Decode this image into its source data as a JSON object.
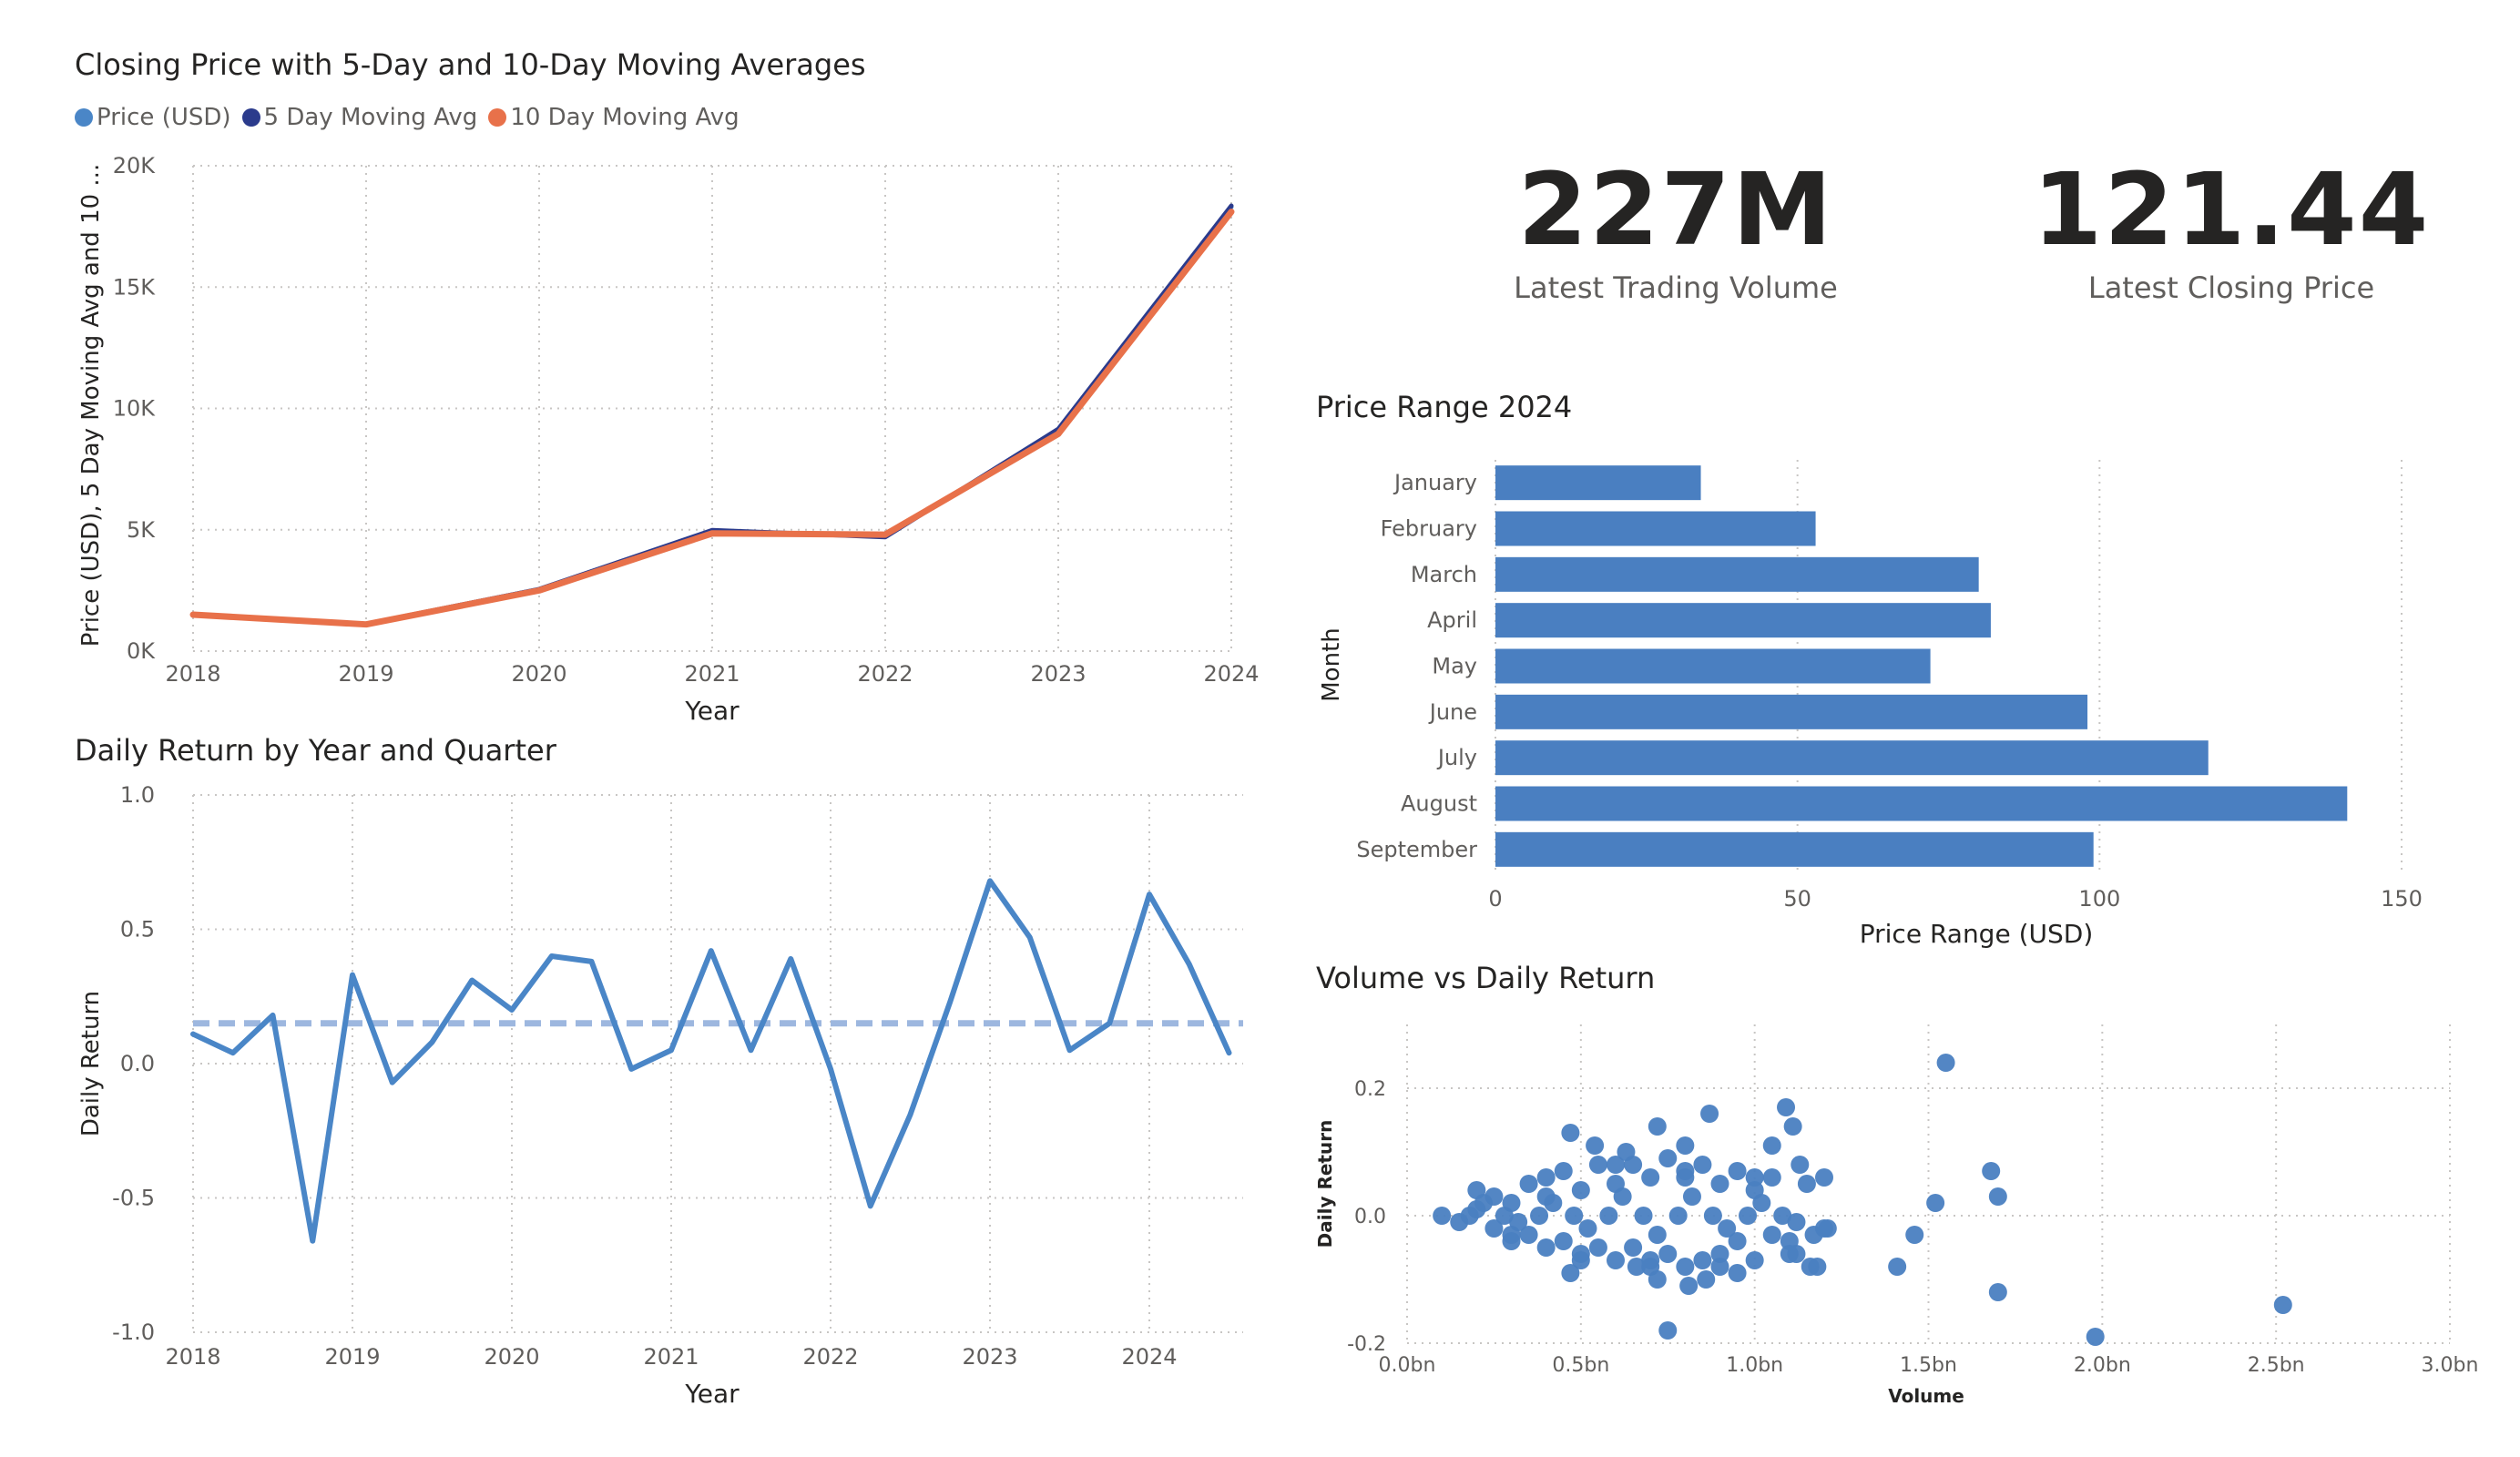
{
  "kpis": {
    "volume": {
      "value": "227M",
      "label": "Latest Trading Volume"
    },
    "price": {
      "value": "121.44",
      "label": "Latest Closing Price"
    }
  },
  "colors": {
    "price": "#4a86c7",
    "ma5": "#2b3b8c",
    "ma10": "#e8714a",
    "bar": "#4a7fc1",
    "scatter": "#4a7fc1",
    "grid": "#c8c6c4",
    "axis_text": "#605e5c"
  },
  "chart_data": [
    {
      "id": "moving_avg",
      "type": "line",
      "title": "Closing Price with 5-Day and 10-Day Moving Averages",
      "xlabel": "Year",
      "ylabel": "Price (USD), 5 Day Moving Avg and 10 ...",
      "x": [
        2018,
        2019,
        2020,
        2021,
        2022,
        2023,
        2024
      ],
      "xticks": [
        "2018",
        "2019",
        "2020",
        "2021",
        "2022",
        "2023",
        "2024"
      ],
      "ylim": [
        0,
        20000
      ],
      "yticks": [
        {
          "v": 0,
          "label": "0K"
        },
        {
          "v": 5000,
          "label": "5K"
        },
        {
          "v": 10000,
          "label": "10K"
        },
        {
          "v": 15000,
          "label": "15K"
        },
        {
          "v": 20000,
          "label": "20K"
        }
      ],
      "legend": "top-left",
      "grid": true,
      "series": [
        {
          "name": "Price (USD)",
          "values": [
            1500,
            1120,
            2550,
            4950,
            4750,
            9100,
            18300
          ]
        },
        {
          "name": "5 Day Moving Avg",
          "values": [
            1500,
            1120,
            2550,
            4980,
            4700,
            9150,
            18350
          ]
        },
        {
          "name": "10 Day Moving Avg",
          "values": [
            1500,
            1100,
            2500,
            4850,
            4800,
            8950,
            18100
          ]
        }
      ]
    },
    {
      "id": "daily_return",
      "type": "line",
      "title": "Daily Return by Year and Quarter",
      "xlabel": "Year",
      "ylabel": "Daily Return",
      "xticks": [
        "2018",
        "2019",
        "2020",
        "2021",
        "2022",
        "2023",
        "2024"
      ],
      "xlim": [
        2018,
        2024.6
      ],
      "ylim": [
        -1.0,
        1.0
      ],
      "yticks": [
        {
          "v": -1.0,
          "label": "-1.0"
        },
        {
          "v": -0.5,
          "label": "-0.5"
        },
        {
          "v": 0.0,
          "label": "0.0"
        },
        {
          "v": 0.5,
          "label": "0.5"
        },
        {
          "v": 1.0,
          "label": "1.0"
        }
      ],
      "grid": true,
      "average_line": 0.15,
      "x": [
        2018.0,
        2018.25,
        2018.5,
        2018.75,
        2019.0,
        2019.25,
        2019.5,
        2019.75,
        2020.0,
        2020.25,
        2020.5,
        2020.75,
        2021.0,
        2021.25,
        2021.5,
        2021.75,
        2022.0,
        2022.25,
        2022.5,
        2022.75,
        2023.0,
        2023.25,
        2023.5,
        2023.75,
        2024.0,
        2024.25,
        2024.5
      ],
      "values": [
        0.11,
        0.04,
        0.18,
        -0.66,
        0.33,
        -0.07,
        0.08,
        0.31,
        0.2,
        0.4,
        0.38,
        -0.02,
        0.05,
        0.42,
        0.05,
        0.39,
        -0.02,
        -0.53,
        -0.19,
        0.23,
        0.68,
        0.47,
        0.05,
        0.15,
        0.63,
        0.37,
        0.04
      ]
    },
    {
      "id": "price_range",
      "type": "bar",
      "orientation": "horizontal",
      "title": "Price Range 2024",
      "xlabel": "Price Range (USD)",
      "ylabel": "Month",
      "categories": [
        "January",
        "February",
        "March",
        "April",
        "May",
        "June",
        "July",
        "August",
        "September"
      ],
      "values": [
        34,
        53,
        80,
        82,
        72,
        98,
        118,
        141,
        99
      ],
      "xlim": [
        0,
        150
      ],
      "xticks": [
        {
          "v": 0,
          "label": "0"
        },
        {
          "v": 50,
          "label": "50"
        },
        {
          "v": 100,
          "label": "100"
        },
        {
          "v": 150,
          "label": "150"
        }
      ],
      "grid": true
    },
    {
      "id": "vol_scatter",
      "type": "scatter",
      "title": "Volume vs Daily Return",
      "xlabel": "Volume",
      "ylabel": "Daily Return",
      "xlim": [
        0,
        3.0
      ],
      "ylim": [
        -0.2,
        0.3
      ],
      "xticks": [
        {
          "v": 0,
          "label": "0.0bn"
        },
        {
          "v": 0.5,
          "label": "0.5bn"
        },
        {
          "v": 1.0,
          "label": "1.0bn"
        },
        {
          "v": 1.5,
          "label": "1.5bn"
        },
        {
          "v": 2.0,
          "label": "2.0bn"
        },
        {
          "v": 2.5,
          "label": "2.5bn"
        },
        {
          "v": 3.0,
          "label": "3.0bn"
        }
      ],
      "yticks": [
        {
          "v": -0.2,
          "label": "-0.2"
        },
        {
          "v": 0.0,
          "label": "0.0"
        },
        {
          "v": 0.2,
          "label": "0.2"
        }
      ],
      "grid": true,
      "x_unit": "bn",
      "points": [
        [
          0.1,
          0.0
        ],
        [
          0.15,
          -0.01
        ],
        [
          0.2,
          0.01
        ],
        [
          0.25,
          -0.02
        ],
        [
          0.3,
          0.02
        ],
        [
          0.35,
          -0.03
        ],
        [
          0.4,
          0.03
        ],
        [
          0.45,
          -0.04
        ],
        [
          0.5,
          0.04
        ],
        [
          0.55,
          -0.05
        ],
        [
          0.6,
          0.05
        ],
        [
          0.65,
          -0.05
        ],
        [
          0.7,
          0.06
        ],
        [
          0.75,
          -0.06
        ],
        [
          0.8,
          0.06
        ],
        [
          0.85,
          -0.07
        ],
        [
          0.9,
          0.05
        ],
        [
          0.95,
          -0.04
        ],
        [
          1.0,
          0.04
        ],
        [
          1.05,
          -0.03
        ],
        [
          0.2,
          0.04
        ],
        [
          0.3,
          -0.04
        ],
        [
          0.4,
          0.06
        ],
        [
          0.5,
          -0.06
        ],
        [
          0.6,
          0.08
        ],
        [
          0.7,
          -0.08
        ],
        [
          0.8,
          0.07
        ],
        [
          0.9,
          -0.06
        ],
        [
          1.0,
          0.06
        ],
        [
          1.1,
          -0.04
        ],
        [
          0.25,
          0.03
        ],
        [
          0.35,
          0.05
        ],
        [
          0.45,
          0.07
        ],
        [
          0.55,
          0.08
        ],
        [
          0.65,
          0.08
        ],
        [
          0.75,
          0.09
        ],
        [
          0.85,
          0.08
        ],
        [
          0.95,
          0.07
        ],
        [
          1.05,
          0.06
        ],
        [
          1.15,
          0.05
        ],
        [
          0.3,
          -0.03
        ],
        [
          0.4,
          -0.05
        ],
        [
          0.5,
          -0.07
        ],
        [
          0.6,
          -0.07
        ],
        [
          0.7,
          -0.07
        ],
        [
          0.8,
          -0.08
        ],
        [
          0.9,
          -0.08
        ],
        [
          1.0,
          -0.07
        ],
        [
          1.1,
          -0.06
        ],
        [
          1.2,
          -0.02
        ],
        [
          0.18,
          0.0
        ],
        [
          0.28,
          0.0
        ],
        [
          0.38,
          0.0
        ],
        [
          0.48,
          0.0
        ],
        [
          0.58,
          0.0
        ],
        [
          0.68,
          0.0
        ],
        [
          0.78,
          0.0
        ],
        [
          0.88,
          0.0
        ],
        [
          0.98,
          0.0
        ],
        [
          1.08,
          0.0
        ],
        [
          0.22,
          0.02
        ],
        [
          0.32,
          -0.01
        ],
        [
          0.42,
          0.02
        ],
        [
          0.52,
          -0.02
        ],
        [
          0.62,
          0.03
        ],
        [
          0.72,
          -0.03
        ],
        [
          0.82,
          0.03
        ],
        [
          0.92,
          -0.02
        ],
        [
          1.02,
          0.02
        ],
        [
          1.12,
          -0.01
        ],
        [
          0.47,
          0.13
        ],
        [
          0.54,
          0.11
        ],
        [
          0.63,
          0.1
        ],
        [
          0.72,
          0.14
        ],
        [
          0.8,
          0.11
        ],
        [
          0.87,
          0.16
        ],
        [
          1.09,
          0.17
        ],
        [
          1.11,
          0.14
        ],
        [
          1.05,
          0.11
        ],
        [
          1.13,
          0.08
        ],
        [
          1.2,
          0.06
        ],
        [
          0.47,
          -0.09
        ],
        [
          0.66,
          -0.08
        ],
        [
          0.72,
          -0.1
        ],
        [
          0.75,
          -0.18
        ],
        [
          0.81,
          -0.11
        ],
        [
          0.86,
          -0.1
        ],
        [
          0.95,
          -0.09
        ],
        [
          1.12,
          -0.06
        ],
        [
          1.16,
          -0.08
        ],
        [
          1.18,
          -0.08
        ],
        [
          1.21,
          -0.02
        ],
        [
          1.17,
          -0.03
        ],
        [
          1.41,
          -0.08
        ],
        [
          1.46,
          -0.03
        ],
        [
          1.52,
          0.02
        ],
        [
          1.55,
          0.24
        ],
        [
          1.68,
          0.07
        ],
        [
          1.7,
          0.03
        ],
        [
          1.7,
          -0.12
        ],
        [
          1.98,
          -0.19
        ],
        [
          2.52,
          -0.14
        ]
      ]
    }
  ]
}
